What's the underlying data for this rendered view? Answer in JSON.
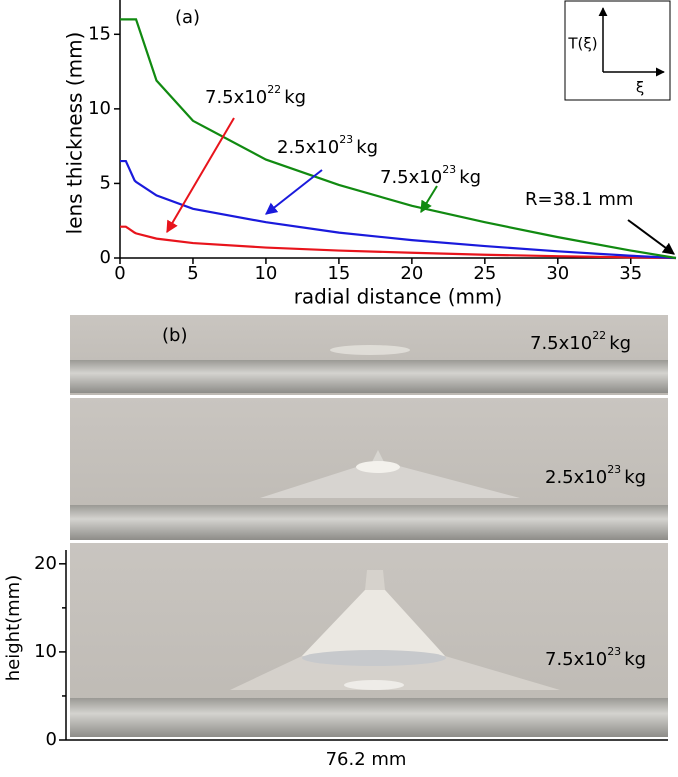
{
  "chart_data": [
    {
      "type": "line",
      "panel_label": "(a)",
      "xlabel": "radial distance (mm)",
      "ylabel": "lens thickness (mm)",
      "x": [
        0,
        0.4,
        1,
        1.1,
        2.5,
        5,
        10,
        15,
        20,
        25,
        30,
        35,
        38.1
      ],
      "series": [
        {
          "name": {
            "base": "7.5x10",
            "sup": "22",
            "unit": "kg"
          },
          "color": "#e8141c",
          "values": [
            2.1,
            2.1,
            1.7,
            1.65,
            1.3,
            1.0,
            0.7,
            0.5,
            0.35,
            0.22,
            0.12,
            0.04,
            0
          ]
        },
        {
          "name": {
            "base": "2.5x10",
            "sup": "23",
            "unit": "kg"
          },
          "color": "#1a1adc",
          "values": [
            6.5,
            6.5,
            5.2,
            5.1,
            4.2,
            3.3,
            2.4,
            1.7,
            1.2,
            0.8,
            0.45,
            0.15,
            0
          ]
        },
        {
          "name": {
            "base": "7.5x10",
            "sup": "23",
            "unit": "kg"
          },
          "color": "#118a11",
          "values": [
            16,
            16,
            16,
            16,
            11.9,
            9.2,
            6.6,
            4.9,
            3.5,
            2.4,
            1.4,
            0.5,
            0
          ]
        }
      ],
      "annotation": "R=38.1 mm",
      "inset": {
        "ylabel": "T(ξ)",
        "xlabel": "ξ"
      },
      "xlim": [
        0,
        38.1
      ],
      "xticks": [
        0,
        5,
        10,
        15,
        20,
        25,
        30,
        35
      ],
      "ylim": [
        0,
        17.3
      ],
      "yticks": [
        0,
        5,
        10,
        15
      ]
    },
    {
      "type": "photo",
      "panel_label": "(b)",
      "labels": [
        {
          "base": "7.5x10",
          "sup": "22",
          "unit": "kg"
        },
        {
          "base": "2.5x10",
          "sup": "23",
          "unit": "kg"
        },
        {
          "base": "7.5x10",
          "sup": "23",
          "unit": "kg"
        }
      ],
      "ylabel": "height(mm)",
      "xlabel": "76.2 mm",
      "ylim": [
        0,
        21
      ],
      "yticks": [
        0,
        10,
        20
      ],
      "minor_yticks": [
        5,
        15
      ]
    }
  ]
}
